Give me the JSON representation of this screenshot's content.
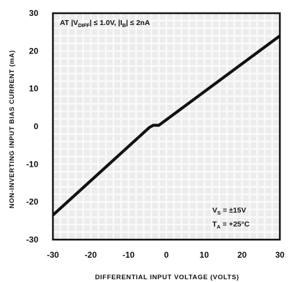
{
  "chart_data": {
    "type": "line",
    "xlabel": "DIFFERENTIAL INPUT VOLTAGE (VOLTS)",
    "ylabel": "NON-INVERTING INPUT BIAS CURRENT (mA)",
    "xlim": [
      -30,
      30
    ],
    "ylim": [
      -30,
      30
    ],
    "x_ticks": [
      "-30",
      "-20",
      "-10",
      "0",
      "10",
      "20",
      "30"
    ],
    "y_ticks": [
      "30",
      "20",
      "10",
      "0",
      "-10",
      "-20",
      "-30"
    ],
    "grid": true,
    "series": [
      {
        "x": [
          -30,
          -4.5,
          -3.5,
          -2,
          30
        ],
        "y": [
          -23.5,
          -0.3,
          0.3,
          0.3,
          24
        ]
      }
    ],
    "annotations": {
      "condition": {
        "pre": "AT |V",
        "sub1": "DIFF",
        "mid": "| ≤ 1.0V, |I",
        "sub2": "B",
        "post": "| ≤ 2nA"
      },
      "supply": {
        "pre": "V",
        "sub": "S",
        "post": " = ±15V"
      },
      "temperature": {
        "pre": "T",
        "sub": "A",
        "post": " = +25°C"
      }
    },
    "colors": {
      "line": "#111111",
      "grid": "#d4d4d4",
      "plot_background": "#ececec",
      "frame": "#111111"
    }
  }
}
